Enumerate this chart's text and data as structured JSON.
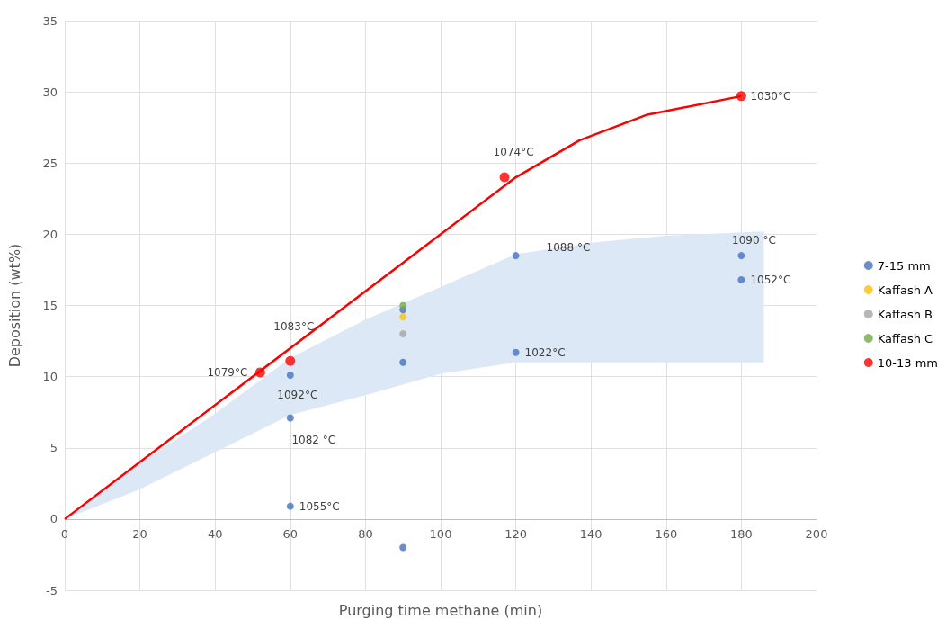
{
  "chart_data": {
    "type": "scatter",
    "xlabel": "Purging time methane (min)",
    "ylabel": "Deposition (wt%)",
    "xlim": [
      0,
      200
    ],
    "xticks": [
      0,
      20,
      40,
      60,
      80,
      100,
      120,
      140,
      160,
      180,
      200
    ],
    "ylim": [
      -5,
      35
    ],
    "yticks": [
      -5,
      0,
      5,
      10,
      15,
      20,
      25,
      30,
      35
    ],
    "grid": true,
    "legend": "right",
    "marker": "circle",
    "series": [
      {
        "type": "area",
        "color": "#dce8f5",
        "x": [
          0,
          20,
          40,
          60,
          80,
          100,
          120,
          140,
          160,
          186
        ],
        "values": [
          null,
          null,
          null,
          null,
          null,
          null,
          null,
          null,
          null,
          null
        ],
        "lower": [
          0,
          2.1,
          4.7,
          7.3,
          8.7,
          10.2,
          11.0,
          11.0,
          11.0,
          11.0
        ],
        "upper": [
          0,
          3.9,
          7.4,
          11.3,
          14.0,
          16.3,
          18.6,
          19.4,
          19.9,
          20.2
        ]
      },
      {
        "type": "line",
        "color": "#ff0000",
        "marker": "none",
        "x": [
          0,
          120,
          137,
          155,
          180
        ],
        "values": [
          0,
          24.0,
          26.6,
          28.4,
          29.7
        ]
      },
      {
        "name": "7-15 mm",
        "color": "#4472c4",
        "x": [
          60,
          60,
          60,
          90,
          90,
          90,
          120,
          120,
          180,
          180
        ],
        "values": [
          10.1,
          7.1,
          0.9,
          14.7,
          11.0,
          -2.0,
          18.5,
          11.7,
          18.5,
          16.8
        ]
      },
      {
        "name": "Kaffash A",
        "color": "#ffc000",
        "x": [
          90
        ],
        "values": [
          14.2
        ]
      },
      {
        "name": "Kaffash B",
        "color": "#a5a5a5",
        "x": [
          90
        ],
        "values": [
          13.0
        ]
      },
      {
        "name": "Kaffash C",
        "color": "#70ad47",
        "x": [
          90
        ],
        "values": [
          15.0
        ]
      },
      {
        "name": "10-13 mm",
        "color": "#ff0000",
        "x": [
          52,
          60,
          117,
          180
        ],
        "values": [
          10.3,
          11.1,
          24.0,
          29.7
        ]
      }
    ],
    "annotations": [
      {
        "text": "1079°C",
        "x": 52,
        "y": 10.3
      },
      {
        "text": "1083°C",
        "x": 60,
        "y": 11.1
      },
      {
        "text": "1092°C",
        "x": 60,
        "y": 10.1
      },
      {
        "text": "1082 °C",
        "x": 60,
        "y": 7.1
      },
      {
        "text": "1055°C",
        "x": 60,
        "y": 0.9
      },
      {
        "text": "1074°C",
        "x": 117,
        "y": 24.0
      },
      {
        "text": "1088 °C",
        "x": 120,
        "y": 18.5
      },
      {
        "text": "1022°C",
        "x": 120,
        "y": 11.7
      },
      {
        "text": "1090 °C",
        "x": 180,
        "y": 18.5
      },
      {
        "text": "1052°C",
        "x": 180,
        "y": 16.8
      },
      {
        "text": "1030°C",
        "x": 180,
        "y": 29.7
      }
    ]
  }
}
